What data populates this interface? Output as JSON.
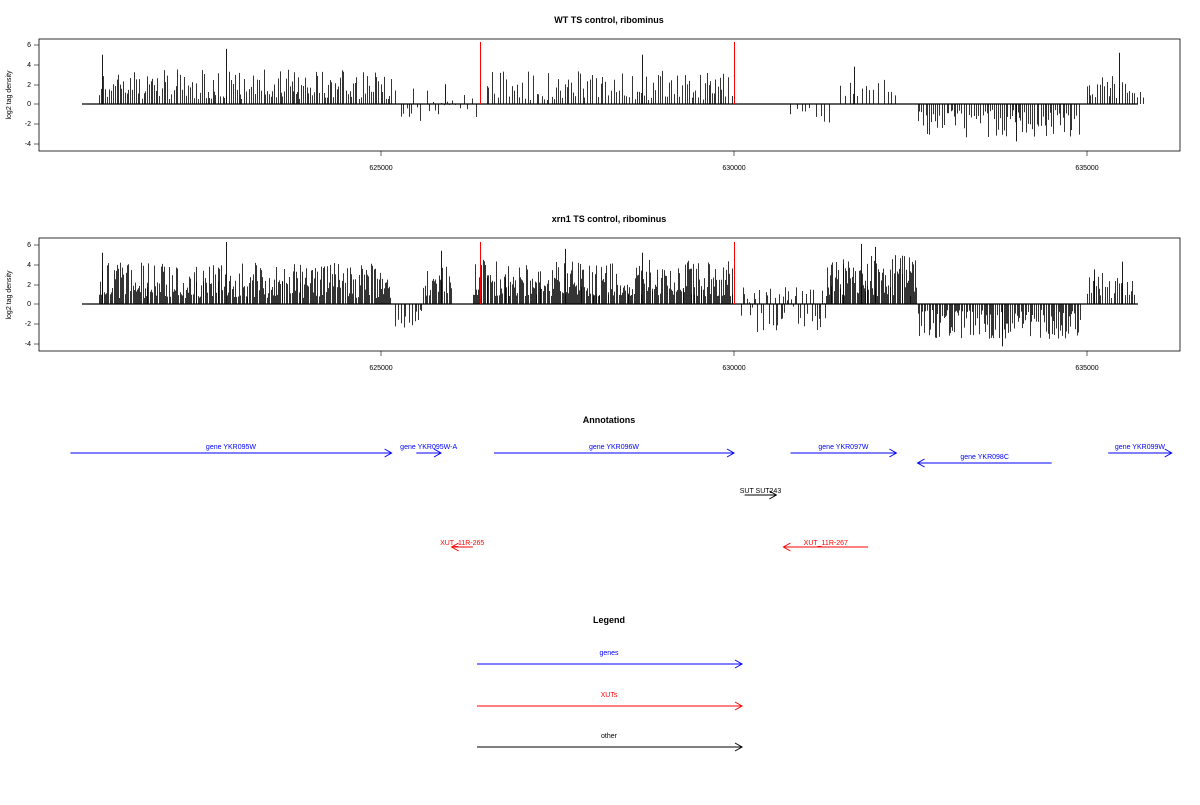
{
  "colors": {
    "genes": "#0000ff",
    "xuts": "#ff0000",
    "other": "#000000",
    "signal": "#000000",
    "marker": "#ff0000"
  },
  "panels": [
    {
      "title": "WT TS control, ribominus",
      "ylabel": "log2 tag density",
      "yticks": [
        "6",
        "4",
        "2",
        "0",
        "-2",
        "-4"
      ],
      "xticks": [
        "625000",
        "630000",
        "635000"
      ]
    },
    {
      "title": "xrn1 TS control, ribominus",
      "ylabel": "log2 tag density",
      "yticks": [
        "6",
        "4",
        "2",
        "0",
        "-2",
        "-4"
      ],
      "xticks": [
        "625000",
        "630000",
        "635000"
      ]
    }
  ],
  "chart_data": [
    {
      "type": "bar",
      "title": "WT TS control, ribominus",
      "ylabel": "log2 tag density",
      "xlim": [
        620600,
        636200
      ],
      "ylim": [
        -4.5,
        6.5
      ],
      "xticks": [
        625000,
        630000,
        635000
      ],
      "yticks": [
        6,
        4,
        2,
        0,
        -2,
        -4
      ],
      "markers_x": [
        626400,
        630000
      ],
      "series": [
        {
          "from": 621000,
          "to": 625150,
          "density": 0.55,
          "min": 0.5,
          "max": 3.5,
          "peaks": [
            [
              621050,
              5.0
            ],
            [
              622800,
              5.6
            ]
          ]
        },
        {
          "from": 625200,
          "to": 626000,
          "density": 0.35,
          "min": -1.8,
          "max": 1.6,
          "peaks": [
            [
              625900,
              2.0
            ]
          ]
        },
        {
          "from": 626000,
          "to": 626400,
          "density": 0.25,
          "min": -1.4,
          "max": 1.4,
          "peaks": []
        },
        {
          "from": 626500,
          "to": 630000,
          "density": 0.42,
          "min": 0.4,
          "max": 3.4,
          "peaks": [
            [
              628700,
              5.0
            ]
          ]
        },
        {
          "from": 630800,
          "to": 631400,
          "density": 0.2,
          "min": -2.2,
          "max": -0.4,
          "peaks": []
        },
        {
          "from": 631500,
          "to": 632300,
          "density": 0.25,
          "min": 0.8,
          "max": 2.6,
          "peaks": [
            [
              631700,
              3.8
            ]
          ]
        },
        {
          "from": 632600,
          "to": 634900,
          "density": 0.5,
          "min": -3.4,
          "max": -0.6,
          "peaks": [
            [
              634000,
              -3.8
            ]
          ]
        },
        {
          "from": 635000,
          "to": 635800,
          "density": 0.45,
          "min": 0.6,
          "max": 3.0,
          "peaks": [
            [
              635450,
              5.2
            ]
          ]
        }
      ]
    },
    {
      "type": "bar",
      "title": "xrn1 TS control, ribominus",
      "ylabel": "log2 tag density",
      "xlim": [
        620600,
        636200
      ],
      "ylim": [
        -4.5,
        6.5
      ],
      "xticks": [
        625000,
        630000,
        635000
      ],
      "yticks": [
        6,
        4,
        2,
        0,
        -2,
        -4
      ],
      "markers_x": [
        626400,
        630000
      ],
      "series": [
        {
          "from": 621000,
          "to": 625150,
          "density": 0.85,
          "min": 0.6,
          "max": 4.2,
          "peaks": [
            [
              621050,
              5.2
            ],
            [
              622800,
              6.3
            ]
          ]
        },
        {
          "from": 625200,
          "to": 625600,
          "density": 0.4,
          "min": -3.3,
          "max": -0.6,
          "peaks": []
        },
        {
          "from": 625600,
          "to": 626000,
          "density": 0.7,
          "min": 0.8,
          "max": 4.0,
          "peaks": [
            [
              625850,
              5.4
            ]
          ]
        },
        {
          "from": 626300,
          "to": 630000,
          "density": 0.9,
          "min": 0.8,
          "max": 4.5,
          "peaks": [
            [
              627600,
              5.6
            ],
            [
              628700,
              5.2
            ]
          ]
        },
        {
          "from": 630100,
          "to": 631300,
          "density": 0.6,
          "min": -3.0,
          "max": 1.8,
          "peaks": []
        },
        {
          "from": 631300,
          "to": 632600,
          "density": 0.9,
          "min": 0.8,
          "max": 5.0,
          "peaks": [
            [
              631800,
              6.1
            ],
            [
              632000,
              5.8
            ]
          ]
        },
        {
          "from": 632600,
          "to": 634900,
          "density": 0.7,
          "min": -3.6,
          "max": -0.6,
          "peaks": [
            [
              633800,
              -4.3
            ]
          ]
        },
        {
          "from": 635000,
          "to": 635700,
          "density": 0.55,
          "min": 0.6,
          "max": 3.2,
          "peaks": [
            [
              635100,
              3.5
            ],
            [
              635500,
              4.3
            ]
          ]
        }
      ]
    }
  ],
  "annotations": {
    "title": "Annotations",
    "genes": [
      {
        "label": "gene YKR095W",
        "from": 620600,
        "to": 625150
      },
      {
        "label": "gene YKR095W-A",
        "from": 625500,
        "to": 625850
      },
      {
        "label": "gene YKR096W",
        "from": 626600,
        "to": 630000
      },
      {
        "label": "gene YKR097W",
        "from": 630800,
        "to": 632300
      },
      {
        "label": "gene YKR098C",
        "from": 634500,
        "to": 632600
      },
      {
        "label": "gene YKR099W",
        "from": 635300,
        "to": 636200
      }
    ],
    "other": [
      {
        "label": "SUT SUT243",
        "from": 630150,
        "to": 630600
      }
    ],
    "xuts": [
      {
        "label": "XUT_11R-265",
        "from": 626300,
        "to": 626000
      },
      {
        "label": "XUT_11R-267",
        "from": 631900,
        "to": 630700
      }
    ]
  },
  "legend": {
    "title": "Legend",
    "items": [
      {
        "label": "genes",
        "color_key": "genes"
      },
      {
        "label": "XUTs",
        "color_key": "xuts"
      },
      {
        "label": "other",
        "color_key": "other"
      }
    ]
  }
}
